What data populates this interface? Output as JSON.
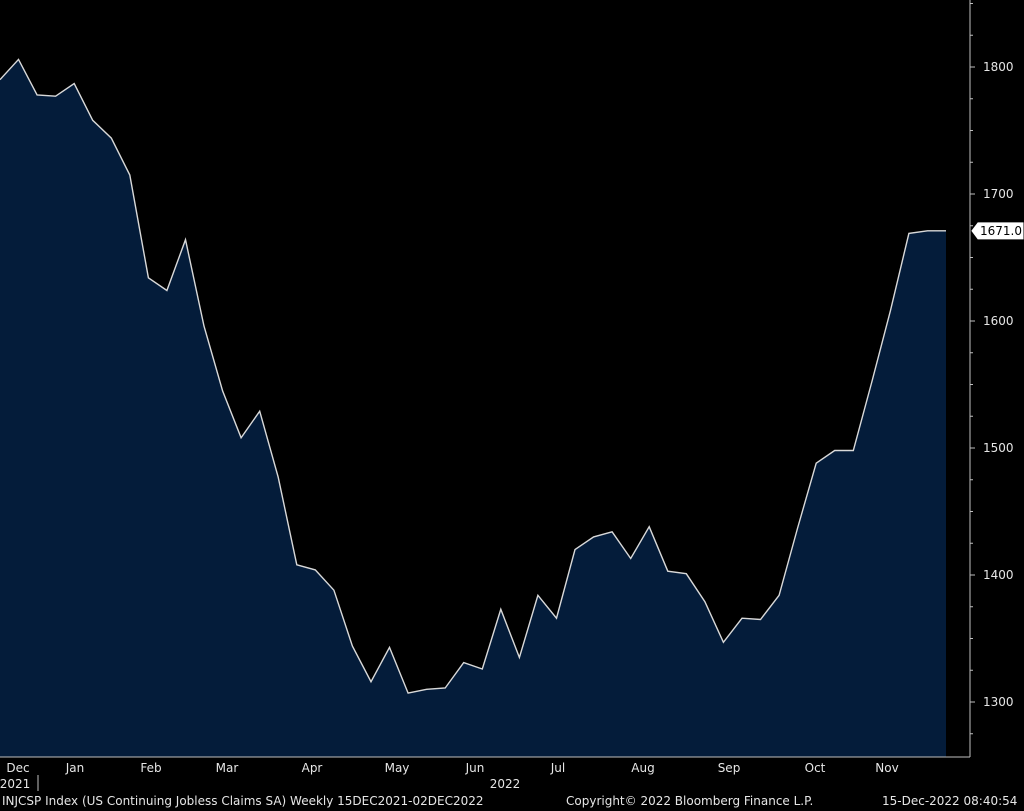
{
  "chart_data": {
    "type": "area",
    "title": "",
    "xlabel": "",
    "ylabel": "",
    "ylim": [
      1255,
      1860
    ],
    "y_ticks": [
      1300,
      1400,
      1500,
      1600,
      1700,
      1800
    ],
    "x_month_labels": [
      "Dec",
      "Jan",
      "Feb",
      "Mar",
      "Apr",
      "May",
      "Jun",
      "Jul",
      "Aug",
      "Sep",
      "Oct",
      "Nov"
    ],
    "year_labels": [
      "2021",
      "2022"
    ],
    "last_value_label": "1671.0",
    "colors": {
      "background": "#000000",
      "fill": "#041c3a",
      "line": "#d9d9d9",
      "text": "#e6e6e6"
    },
    "series": [
      {
        "x": [
          "2021-12-04",
          "2021-12-11",
          "2021-12-18",
          "2021-12-25",
          "2022-01-01",
          "2022-01-08",
          "2022-01-15",
          "2022-01-22",
          "2022-01-29",
          "2022-02-05",
          "2022-02-12",
          "2022-02-19",
          "2022-02-26",
          "2022-03-05",
          "2022-03-12",
          "2022-03-19",
          "2022-03-26",
          "2022-04-02",
          "2022-04-09",
          "2022-04-16",
          "2022-04-23",
          "2022-04-30",
          "2022-05-07",
          "2022-05-14",
          "2022-05-21",
          "2022-05-28",
          "2022-06-04",
          "2022-06-11",
          "2022-06-18",
          "2022-06-25",
          "2022-07-02",
          "2022-07-09",
          "2022-07-16",
          "2022-07-23",
          "2022-07-30",
          "2022-08-06",
          "2022-08-13",
          "2022-08-20",
          "2022-08-27",
          "2022-09-03",
          "2022-09-10",
          "2022-09-17",
          "2022-09-24",
          "2022-10-01",
          "2022-10-08",
          "2022-10-15",
          "2022-10-22",
          "2022-10-29",
          "2022-11-05",
          "2022-11-12",
          "2022-11-19",
          "2022-11-26"
        ],
        "values": [
          1790,
          1806,
          1778,
          1777,
          1787,
          1758,
          1744,
          1715,
          1634,
          1624,
          1664,
          1596,
          1545,
          1508,
          1529,
          1477,
          1408,
          1404,
          1388,
          1344,
          1316,
          1343,
          1307,
          1310,
          1311,
          1331,
          1326,
          1373,
          1335,
          1384,
          1366,
          1420,
          1430,
          1434,
          1413,
          1438,
          1403,
          1401,
          1379,
          1347,
          1366,
          1365,
          1384,
          1437,
          1488,
          1498,
          1498,
          1552,
          1608,
          1669,
          1671,
          1671
        ]
      }
    ]
  },
  "footer": {
    "ticker": "INJCSP Index (US Continuing Jobless Claims SA)  Weekly 15DEC2021-02DEC2022",
    "copyright": "Copyright© 2022 Bloomberg Finance L.P.",
    "timestamp": "15-Dec-2022 08:40:54"
  }
}
